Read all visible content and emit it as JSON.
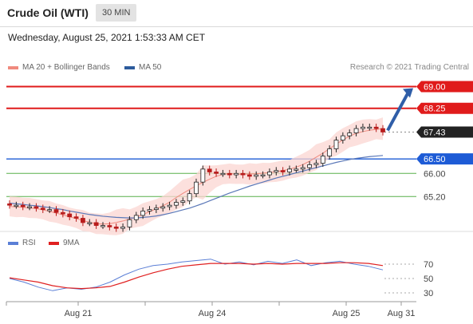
{
  "header": {
    "title": "Crude Oil (WTI)",
    "interval": "30 MIN",
    "datetime": "Wednesday, August 25, 2021 1:53:33 AM CET"
  },
  "main_legend": [
    {
      "label": "MA 20 + Bollinger Bands",
      "color": "#f08a7e"
    },
    {
      "label": "MA 50",
      "color": "#2c5b9c"
    }
  ],
  "credit": "Research © 2021 Trading Central",
  "rsi_legend": [
    {
      "label": "RSI",
      "color": "#5b7fd6"
    },
    {
      "label": "9MA",
      "color": "#e02020"
    }
  ],
  "chart_data": [
    {
      "type": "candlestick",
      "title": "Crude Oil (WTI)",
      "x_ticks": [
        "Aug 21",
        "Aug 24",
        "Aug 25",
        "Aug 31"
      ],
      "ylim": [
        64.05,
        69.29
      ],
      "levels": [
        {
          "value": 69.0,
          "label": "69.00",
          "kind": "resistance",
          "color": "#e01b1b"
        },
        {
          "value": 68.25,
          "label": "68.25",
          "kind": "resistance",
          "color": "#e01b1b"
        },
        {
          "value": 67.43,
          "label": "67.43",
          "kind": "last",
          "color": "#222222"
        },
        {
          "value": 66.5,
          "label": "66.50",
          "kind": "pivot",
          "color": "#1d5bd6"
        },
        {
          "value": 66.0,
          "label": "66.00",
          "kind": "support",
          "color": "#59b04a"
        },
        {
          "value": 65.2,
          "label": "65.20",
          "kind": "support",
          "color": "#59b04a"
        }
      ],
      "arrow": {
        "from": 67.43,
        "to": 69.0,
        "direction": "up"
      },
      "close_series": [
        64.9,
        64.9,
        64.85,
        64.85,
        64.8,
        64.75,
        64.75,
        64.65,
        64.6,
        64.5,
        64.45,
        64.3,
        64.3,
        64.2,
        64.2,
        64.15,
        64.1,
        64.15,
        64.4,
        64.55,
        64.7,
        64.75,
        64.8,
        64.85,
        64.9,
        65.0,
        65.05,
        65.3,
        65.7,
        66.15,
        66.05,
        66.0,
        66.0,
        65.95,
        66.0,
        65.95,
        65.9,
        65.95,
        65.95,
        66.05,
        66.1,
        66.05,
        66.15,
        66.15,
        66.2,
        66.3,
        66.35,
        66.6,
        66.85,
        67.15,
        67.3,
        67.4,
        67.55,
        67.6,
        67.6,
        67.55,
        67.43
      ],
      "ma50_series": [
        64.97,
        64.95,
        64.93,
        64.9,
        64.88,
        64.85,
        64.82,
        64.78,
        64.75,
        64.7,
        64.66,
        64.62,
        64.58,
        64.55,
        64.52,
        64.5,
        64.48,
        64.47,
        64.46,
        64.46,
        64.48,
        64.5,
        64.53,
        64.57,
        64.62,
        64.68,
        64.74,
        64.8,
        64.88,
        64.96,
        65.05,
        65.14,
        65.23,
        65.32,
        65.4,
        65.48,
        65.56,
        65.63,
        65.7,
        65.77,
        65.84,
        65.9,
        65.96,
        66.02,
        66.08,
        66.14,
        66.2,
        66.26,
        66.32,
        66.38,
        66.43,
        66.48,
        66.52,
        66.55,
        66.58,
        66.6,
        66.62
      ]
    },
    {
      "type": "line",
      "title": "RSI",
      "series": [
        {
          "name": "RSI"
        },
        {
          "name": "9MA"
        }
      ],
      "ylim": [
        30,
        70
      ],
      "y_ticks": [
        70,
        50,
        30
      ],
      "rsi": [
        50,
        45,
        38,
        33,
        37,
        35,
        38,
        45,
        55,
        63,
        68,
        70,
        73,
        75,
        77,
        70,
        73,
        69,
        74,
        71,
        76,
        68,
        72,
        74,
        70,
        67,
        62
      ],
      "ma9": [
        51,
        48,
        45,
        40,
        37,
        36,
        37,
        39,
        45,
        52,
        58,
        63,
        67,
        69,
        71,
        71,
        71,
        70,
        71,
        70,
        71,
        71,
        71,
        72,
        72,
        71,
        68
      ]
    }
  ]
}
